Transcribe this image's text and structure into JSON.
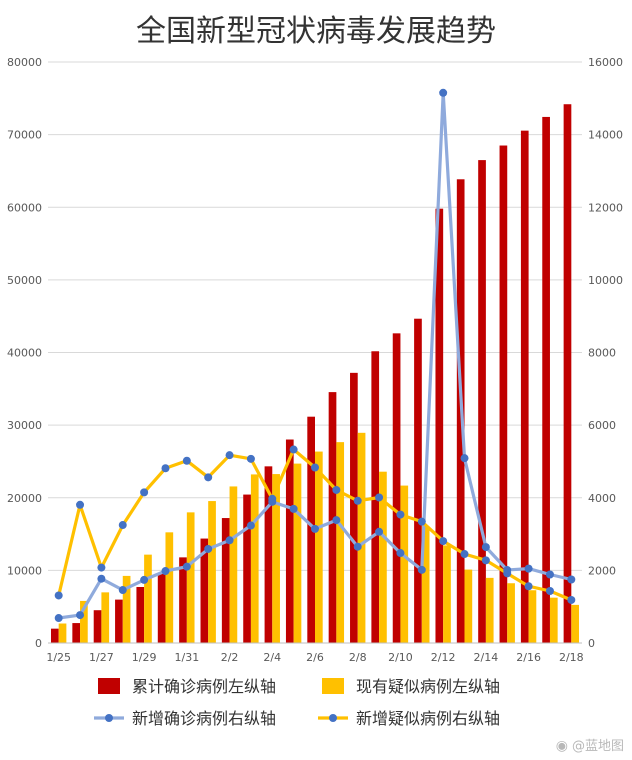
{
  "chart_data": {
    "type": "bar",
    "title": "全国新型冠状病毒发展趋势",
    "categories": [
      "1/25",
      "1/26",
      "1/27",
      "1/28",
      "1/29",
      "1/30",
      "1/31",
      "2/1",
      "2/2",
      "2/3",
      "2/4",
      "2/5",
      "2/6",
      "2/7",
      "2/8",
      "2/9",
      "2/10",
      "2/11",
      "2/12",
      "2/13",
      "2/14",
      "2/15",
      "2/16",
      "2/17",
      "2/18"
    ],
    "x_tick_labels": [
      "1/25",
      "1/27",
      "1/29",
      "1/31",
      "2/2",
      "2/4",
      "2/6",
      "2/8",
      "2/10",
      "2/12",
      "2/14",
      "2/16",
      "2/18"
    ],
    "y_left_ticks": [
      "0",
      "10000",
      "20000",
      "30000",
      "40000",
      "50000",
      "60000",
      "70000",
      "80000"
    ],
    "y_right_ticks": [
      "0",
      "2000",
      "4000",
      "6000",
      "8000",
      "10000",
      "12000",
      "14000",
      "16000"
    ],
    "ylim_left": [
      0,
      80000
    ],
    "ylim_right": [
      0,
      16000
    ],
    "grid": true,
    "legend_position": "bottom",
    "series": [
      {
        "name": "累计确诊病例左纵轴",
        "type": "bar",
        "axis": "left",
        "color": "#c00000",
        "values": [
          1975,
          2744,
          4515,
          5974,
          7711,
          9692,
          11791,
          14380,
          17205,
          20438,
          24324,
          28018,
          31161,
          34546,
          37198,
          40171,
          42638,
          44653,
          59804,
          63851,
          66492,
          68500,
          70548,
          72436,
          74185
        ]
      },
      {
        "name": "现有疑似病例左纵轴",
        "type": "bar",
        "axis": "left",
        "color": "#ffc000",
        "values": [
          2684,
          5794,
          6973,
          9239,
          12167,
          15238,
          17988,
          19544,
          21558,
          23214,
          23260,
          24702,
          26359,
          27657,
          28942,
          23589,
          21675,
          16067,
          13435,
          10109,
          8969,
          8228,
          7264,
          6242,
          5248
        ]
      },
      {
        "name": "新增确诊病例右纵轴",
        "type": "line",
        "axis": "right",
        "color": "#8faadc",
        "marker_color": "#4472c4",
        "values": [
          688,
          769,
          1771,
          1459,
          1737,
          1982,
          2102,
          2590,
          2829,
          3235,
          3887,
          3694,
          3143,
          3385,
          2652,
          3062,
          2478,
          2015,
          15152,
          5090,
          2641,
          2009,
          2048,
          1886,
          1749
        ]
      },
      {
        "name": "新增疑似病例右纵轴",
        "type": "line",
        "axis": "right",
        "color": "#ffc000",
        "marker_color": "#4472c4",
        "values": [
          1309,
          3806,
          2077,
          3248,
          4148,
          4812,
          5019,
          4562,
          5173,
          5072,
          3971,
          5328,
          4833,
          4214,
          3916,
          4008,
          3536,
          3342,
          2807,
          2450,
          2277,
          1918,
          1563,
          1432,
          1185
        ]
      }
    ]
  },
  "watermark": {
    "icon": "weibo-icon",
    "text": "@蓝地图"
  }
}
